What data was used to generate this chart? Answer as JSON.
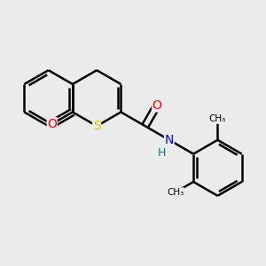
{
  "background_color": "#ebebeb",
  "bond_color": "#000000",
  "atom_colors": {
    "O": "#ff0000",
    "S": "#cccc00",
    "N": "#0000ff",
    "H": "#008080",
    "C": "#000000"
  },
  "line_width": 1.8,
  "dbo": 0.035
}
